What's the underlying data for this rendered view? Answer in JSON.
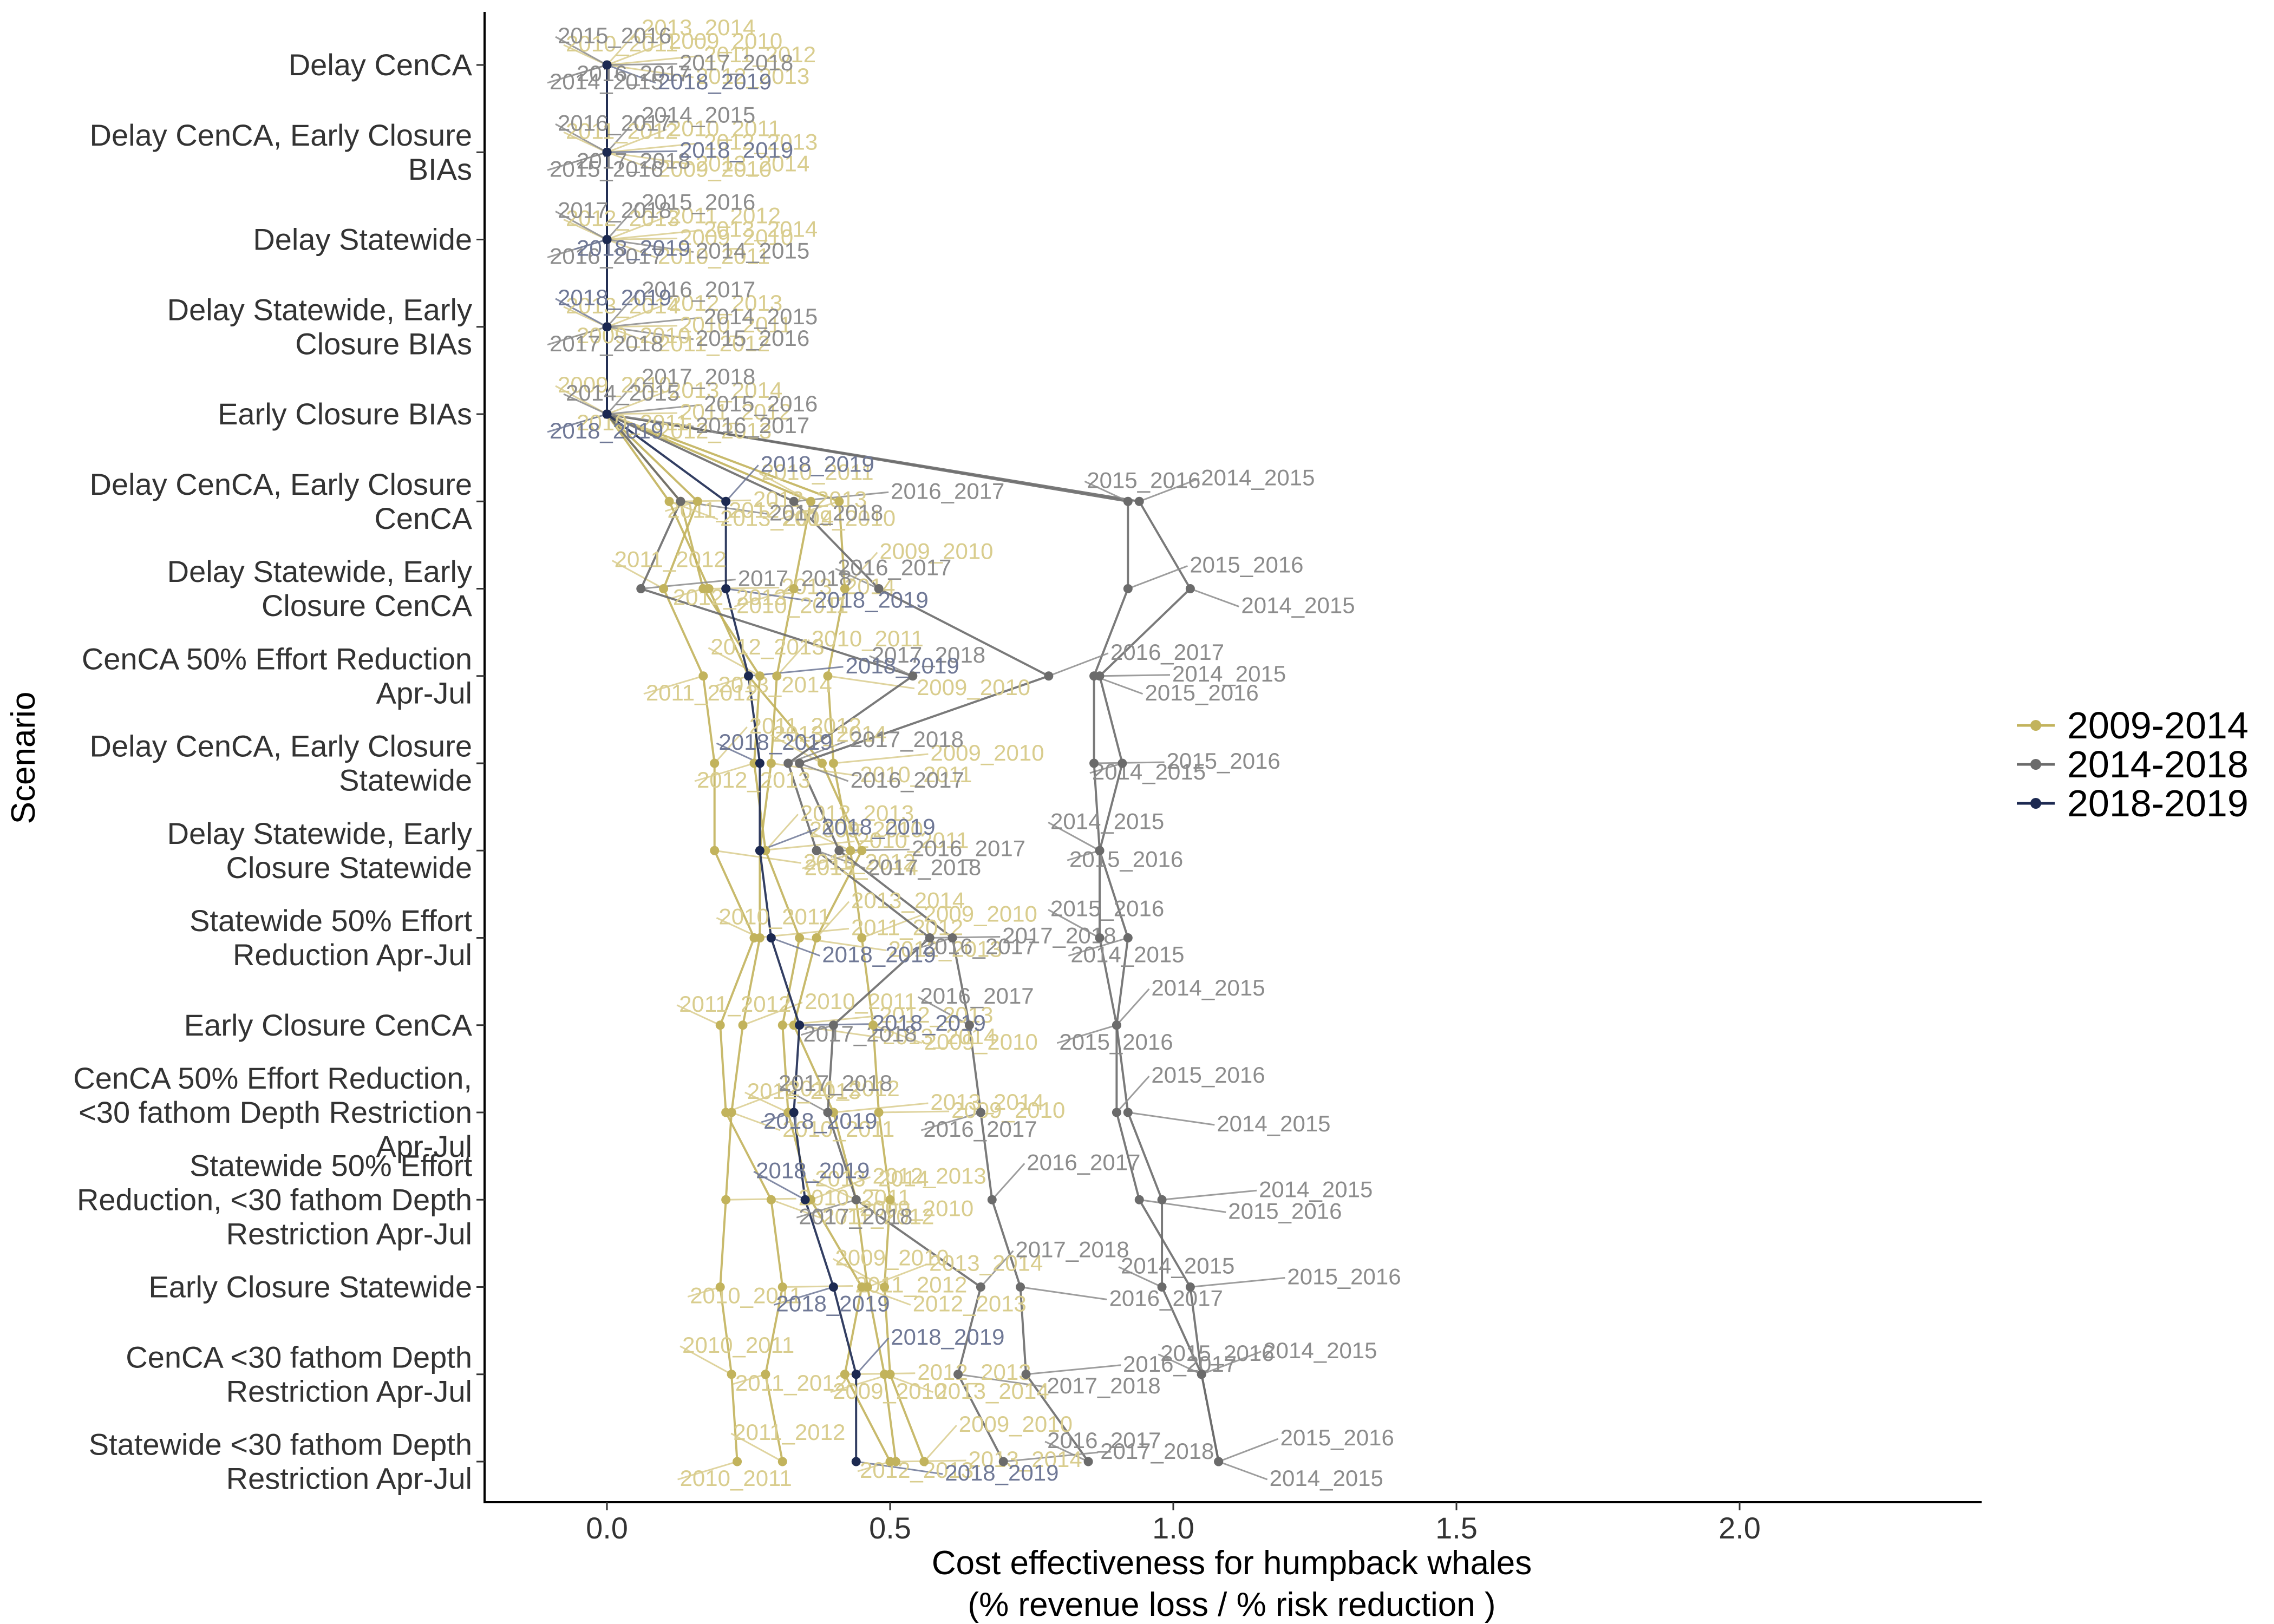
{
  "chart_data": {
    "type": "line",
    "title": "",
    "xlabel_lines": [
      "Cost effectiveness for humpback whales",
      "(% revenue loss / % risk reduction )"
    ],
    "ylabel": "Scenario",
    "xlim": [
      -0.22,
      2.42
    ],
    "x_ticks": [
      "0.0",
      "0.5",
      "1.0",
      "1.5",
      "2.0"
    ],
    "x_tick_values": [
      0,
      0.5,
      1.0,
      1.5,
      2.0
    ],
    "grid": false,
    "legend_position": "right",
    "scenarios": [
      {
        "lines": [
          "Delay CenCA"
        ]
      },
      {
        "lines": [
          "Delay CenCA, Early Closure",
          "BIAs"
        ]
      },
      {
        "lines": [
          "Delay Statewide"
        ]
      },
      {
        "lines": [
          "Delay Statewide, Early",
          "Closure BIAs"
        ]
      },
      {
        "lines": [
          "Early Closure BIAs"
        ]
      },
      {
        "lines": [
          "Delay CenCA, Early Closure",
          "CenCA"
        ]
      },
      {
        "lines": [
          "Delay Statewide, Early",
          "Closure CenCA"
        ]
      },
      {
        "lines": [
          "CenCA 50% Effort Reduction",
          "Apr-Jul"
        ]
      },
      {
        "lines": [
          "Delay CenCA, Early Closure",
          "Statewide"
        ]
      },
      {
        "lines": [
          "Delay Statewide, Early",
          "Closure Statewide"
        ]
      },
      {
        "lines": [
          "Statewide 50% Effort",
          "Reduction Apr-Jul"
        ]
      },
      {
        "lines": [
          "Early Closure CenCA"
        ]
      },
      {
        "lines": [
          "CenCA 50% Effort Reduction,",
          "<30 fathom Depth Restriction",
          "Apr-Jul"
        ]
      },
      {
        "lines": [
          "Statewide 50% Effort",
          "Reduction, <30 fathom Depth",
          "Restriction Apr-Jul"
        ]
      },
      {
        "lines": [
          "Early Closure Statewide"
        ]
      },
      {
        "lines": [
          "CenCA <30 fathom Depth",
          "Restriction Apr-Jul"
        ]
      },
      {
        "lines": [
          "Statewide <30 fathom Depth",
          "Restriction Apr-Jul"
        ]
      }
    ],
    "seasons": [
      "2009_2010",
      "2010_2011",
      "2011_2012",
      "2012_2013",
      "2013_2014",
      "2014_2015",
      "2015_2016",
      "2016_2017",
      "2017_2018",
      "2018_2019"
    ],
    "series": [
      {
        "name": "2009-2014",
        "color": "#C2B35C",
        "label_color": "#D9CD8E",
        "seasons": [
          {
            "season": "2009_2010",
            "values": [
              0,
              0,
              0,
              0,
              0,
              0.41,
              0.42,
              0.39,
              0.4,
              0.43,
              0.45,
              0.47,
              0.48,
              0.5,
              0.49,
              0.5,
              0.56
            ]
          },
          {
            "season": "2010_2011",
            "values": [
              0,
              0,
              0,
              0,
              0,
              0.36,
              0.33,
              0.3,
              0.29,
              0.27,
              0.27,
              0.24,
              0.22,
              0.21,
              0.2,
              0.22,
              0.23
            ]
          },
          {
            "season": "2011_2012",
            "values": [
              0,
              0,
              0,
              0,
              0,
              0.16,
              0.1,
              0.17,
              0.19,
              0.19,
              0.26,
              0.2,
              0.21,
              0.29,
              0.31,
              0.28,
              0.31
            ]
          },
          {
            "season": "2012_2013",
            "values": [
              0,
              0,
              0,
              0,
              0,
              0.13,
              0.17,
              0.27,
              0.26,
              0.28,
              0.34,
              0.31,
              0.32,
              0.36,
              0.45,
              0.42,
              0.5
            ]
          },
          {
            "season": "2013_2014",
            "values": [
              0,
              0,
              0,
              0,
              0,
              0.11,
              0.18,
              0.25,
              0.38,
              0.45,
              0.37,
              0.33,
              0.4,
              0.44,
              0.46,
              0.49,
              0.51
            ]
          }
        ]
      },
      {
        "name": "2014-2018",
        "color": "#6B6B6B",
        "label_color": "#8C8C8C",
        "seasons": [
          {
            "season": "2014_2015",
            "values": [
              0,
              0,
              0,
              0,
              0,
              0.94,
              1.03,
              0.87,
              0.91,
              0.87,
              0.92,
              0.9,
              0.92,
              0.98,
              0.98,
              1.05,
              1.08
            ]
          },
          {
            "season": "2015_2016",
            "values": [
              0,
              0,
              0,
              0,
              0,
              0.92,
              0.92,
              0.86,
              0.86,
              0.87,
              0.87,
              0.9,
              0.9,
              0.94,
              1.03,
              1.05,
              1.08
            ]
          },
          {
            "season": "2016_2017",
            "values": [
              0,
              0,
              0,
              0,
              0,
              0.33,
              0.48,
              0.78,
              0.34,
              0.41,
              0.61,
              0.64,
              0.66,
              0.68,
              0.73,
              0.74,
              0.85
            ]
          },
          {
            "season": "2017_2018",
            "values": [
              0,
              0,
              0,
              0,
              0,
              0.13,
              0.06,
              0.54,
              0.32,
              0.37,
              0.57,
              0.4,
              0.39,
              0.44,
              0.66,
              0.62,
              0.7
            ]
          }
        ]
      },
      {
        "name": "2018-2019",
        "color": "#1C2951",
        "label_color": "#6F7896",
        "seasons": [
          {
            "season": "2018_2019",
            "values": [
              0,
              0,
              0,
              0,
              0,
              0.21,
              0.21,
              0.25,
              0.27,
              0.27,
              0.29,
              0.34,
              0.33,
              0.35,
              0.4,
              0.44,
              0.44
            ]
          }
        ]
      }
    ]
  }
}
